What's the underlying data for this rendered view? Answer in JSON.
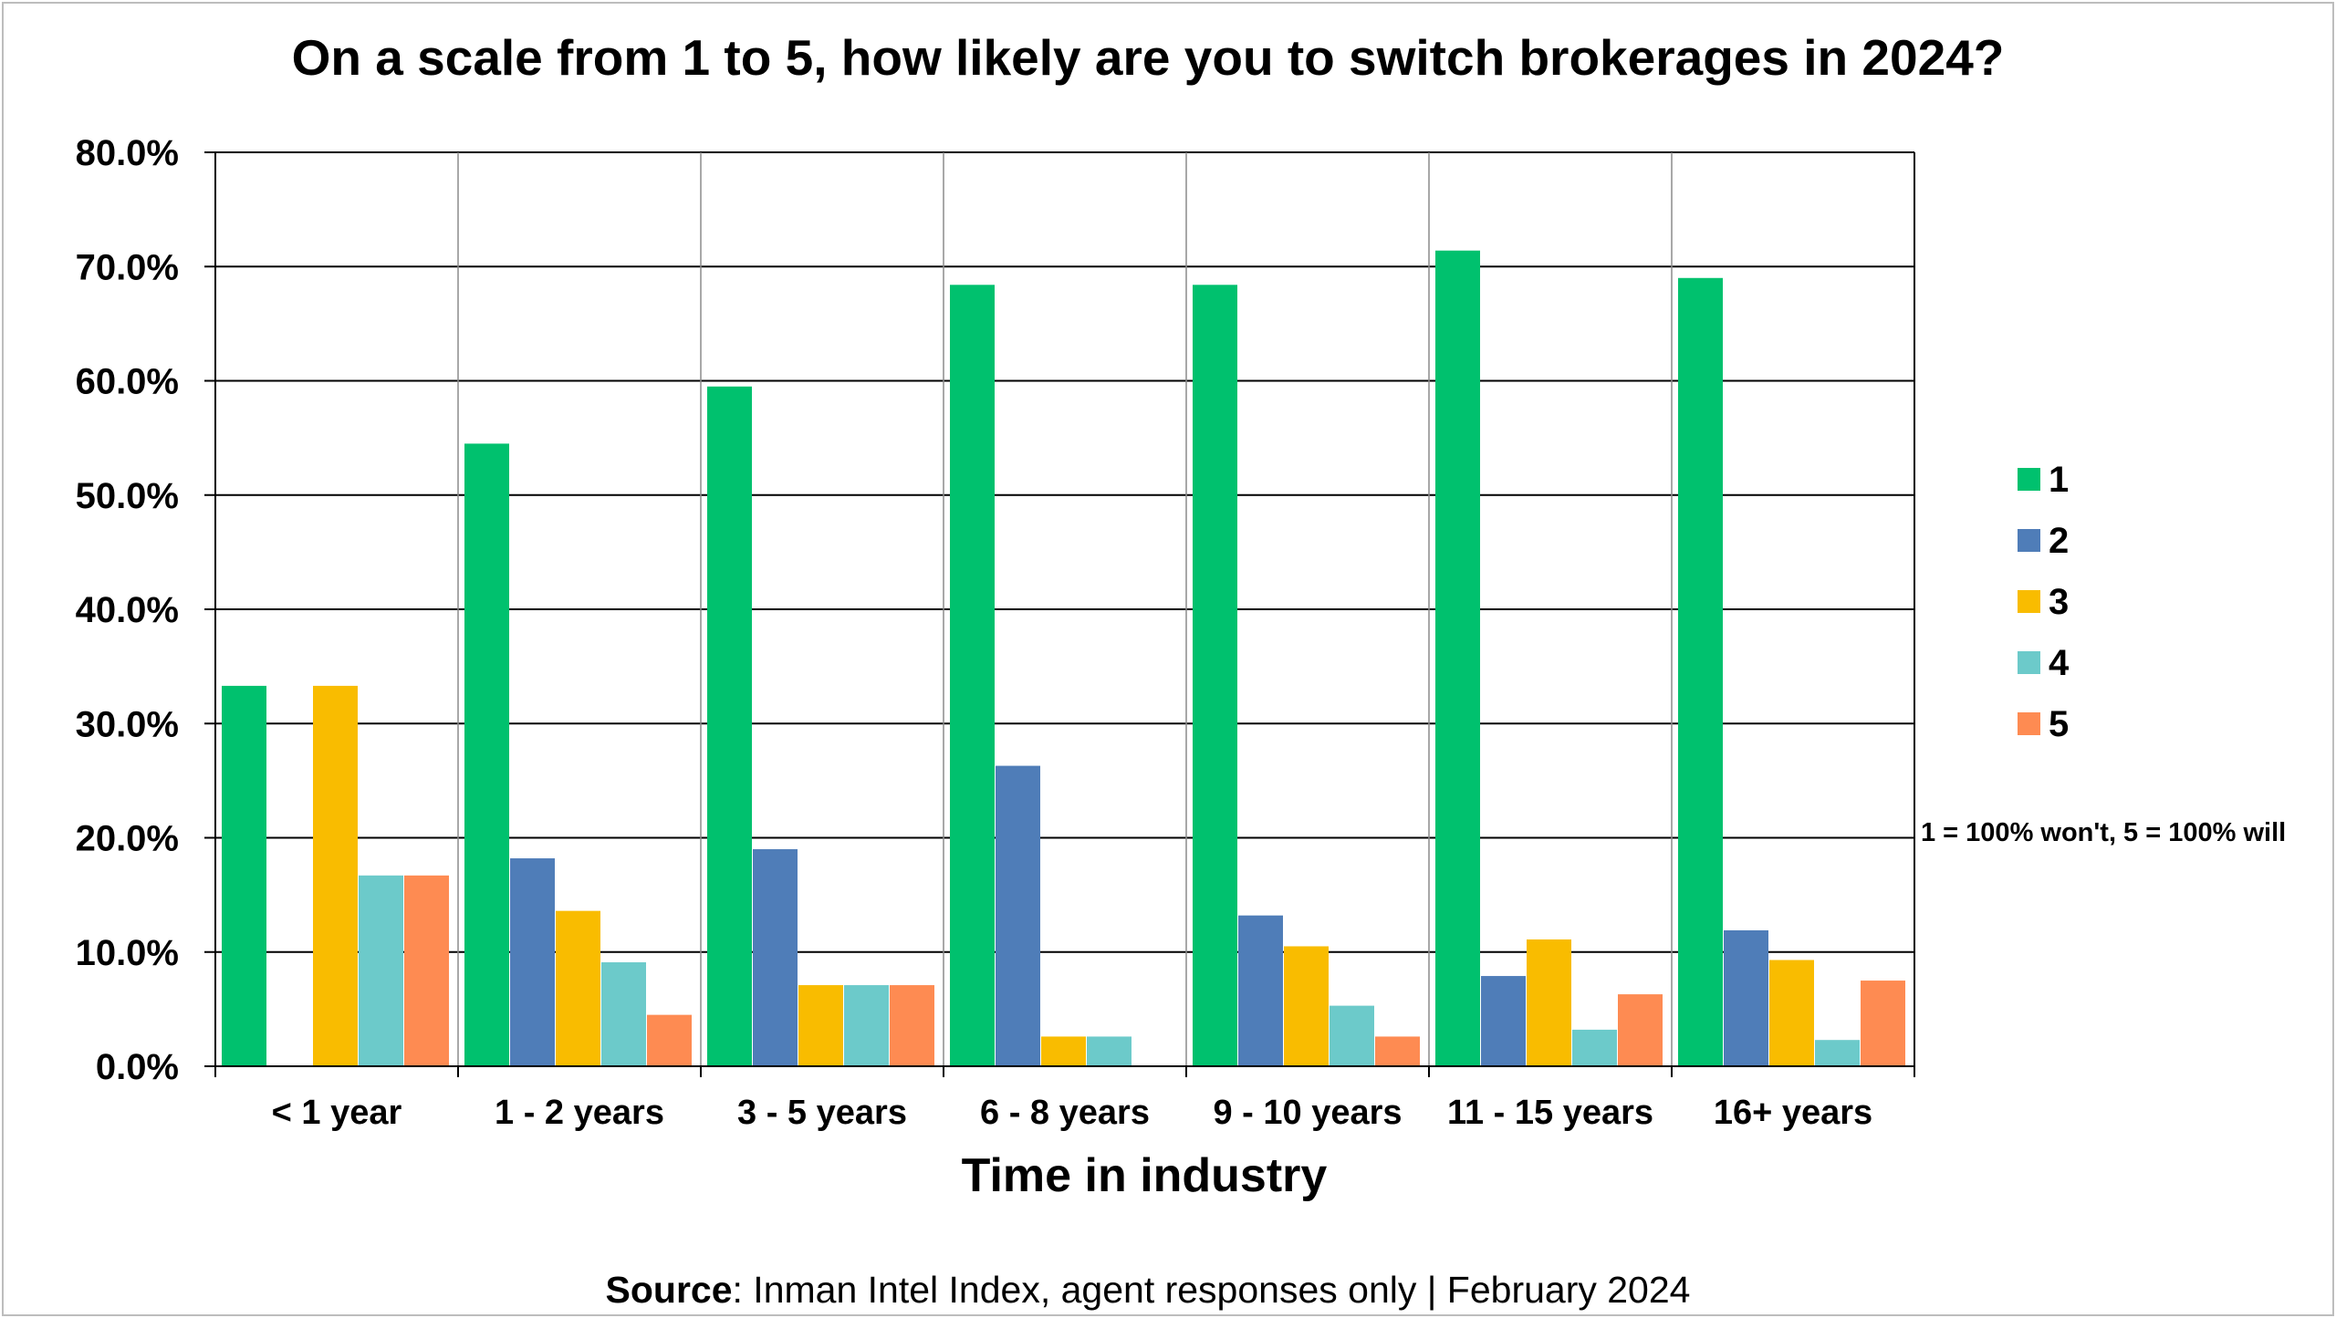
{
  "chart_data": {
    "type": "bar",
    "title": "On a scale from 1 to 5, how likely are you to switch brokerages in 2024?",
    "xlabel": "Time in industry",
    "ylabel": "",
    "ylim": [
      0,
      80
    ],
    "yticks": [
      "0.0%",
      "10.0%",
      "20.0%",
      "30.0%",
      "40.0%",
      "50.0%",
      "60.0%",
      "70.0%",
      "80.0%"
    ],
    "grid": true,
    "legend_position": "right",
    "categories": [
      "< 1 year",
      "1 - 2 years",
      "3 - 5 years",
      "6 - 8 years",
      "9 - 10 years",
      "11 - 15 years",
      "16+ years"
    ],
    "series": [
      {
        "name": "1",
        "color": "#00c16e",
        "values": [
          33.3,
          54.5,
          59.5,
          68.4,
          68.4,
          71.4,
          69.0
        ]
      },
      {
        "name": "2",
        "color": "#4f7db8",
        "values": [
          0.0,
          18.2,
          19.0,
          26.3,
          13.2,
          7.9,
          11.9
        ]
      },
      {
        "name": "3",
        "color": "#f9bc00",
        "values": [
          33.3,
          13.6,
          7.1,
          2.6,
          10.5,
          11.1,
          9.3
        ]
      },
      {
        "name": "4",
        "color": "#6ccaca",
        "values": [
          16.7,
          9.1,
          7.1,
          2.6,
          5.3,
          3.2,
          2.3
        ]
      },
      {
        "name": "5",
        "color": "#fe8b52",
        "values": [
          16.7,
          4.5,
          7.1,
          0.0,
          2.6,
          6.3,
          7.5
        ]
      }
    ],
    "note": "1 = 100% won't, 5 = 100% will"
  },
  "source": {
    "label": "Source",
    "text": ": Inman Intel Index, agent responses only | February 2024"
  }
}
